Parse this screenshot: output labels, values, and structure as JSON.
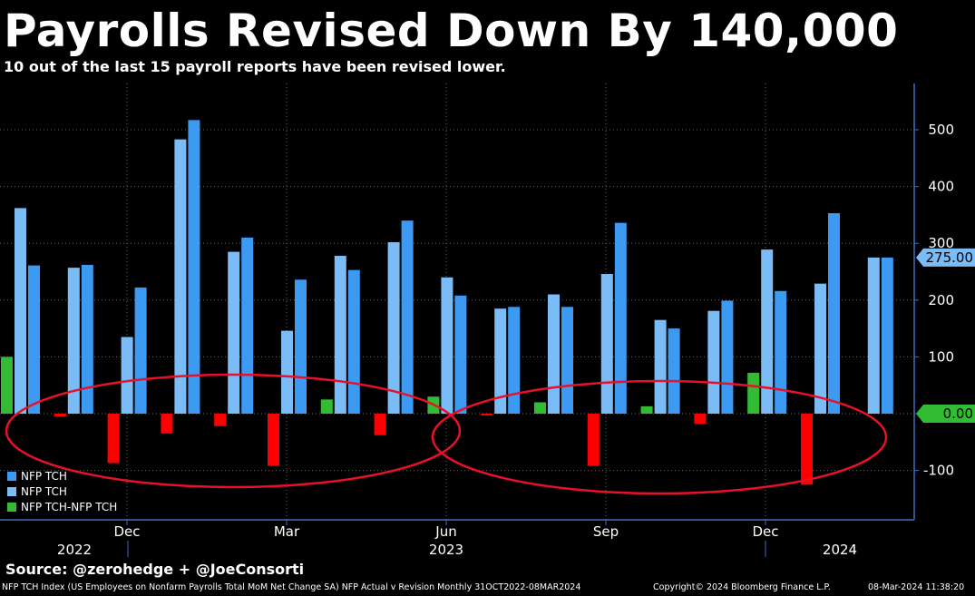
{
  "title": "Payrolls Revised Down By 140,000",
  "subtitle": "10 out of the last 15 payroll reports have been revised lower.",
  "source": "Source: @zerohedge + @JoeConsorti",
  "footer": {
    "description": "NFP TCH Index (US Employees on Nonfarm Payrolls Total MoM Net Change SA) NFP Actual v Revision  Monthly 31OCT2022-08MAR2024",
    "copyright": "Copyright© 2024 Bloomberg Finance L.P.",
    "timestamp": "08-Mar-2024 11:38:20"
  },
  "colors": {
    "initial": "#7bbcf7",
    "revised": "#3d9af2",
    "positive_diff": "#33bb33",
    "negative_diff": "#ff0000",
    "axis": "#3d6fbf",
    "annotation": "#e8102a"
  },
  "chart_data": {
    "type": "bar",
    "title": "Payrolls Revised Down By 140,000",
    "x_tick_labels": [
      "Dec",
      "Mar",
      "Jun",
      "Sep",
      "Dec"
    ],
    "year_labels": [
      "2022",
      "2023",
      "2024"
    ],
    "y_ticks": [
      -100,
      0,
      100,
      200,
      300,
      400,
      500
    ],
    "ylim": [
      -190,
      580
    ],
    "last_value_labels": [
      {
        "value": 275,
        "text": "275.00"
      },
      {
        "value": 0,
        "text": "0.00"
      }
    ],
    "legend": [
      "NFP TCH",
      "NFP TCH",
      "NFP TCH-NFP TCH"
    ],
    "series": [
      {
        "name": "NFP TCH (initial)",
        "values": [
          362,
          257,
          135,
          483,
          285,
          146,
          278,
          302,
          240,
          185,
          210,
          246,
          165,
          181,
          289,
          229,
          275
        ]
      },
      {
        "name": "NFP TCH (revised)",
        "values": [
          261,
          262,
          222,
          517,
          310,
          236,
          253,
          340,
          208,
          188,
          188,
          336,
          150,
          199,
          216,
          353,
          275
        ]
      },
      {
        "name": "NFP TCH-NFP TCH",
        "values": [
          100,
          -5,
          -87,
          -35,
          -22,
          -92,
          25,
          -38,
          30,
          -2,
          20,
          -92,
          13,
          -18,
          72,
          -125,
          0
        ]
      }
    ]
  }
}
